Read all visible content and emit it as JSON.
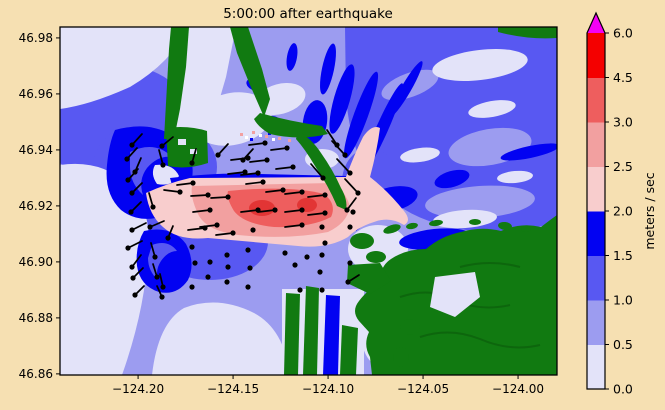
{
  "figure": {
    "title": "5:00:00 after earthquake",
    "background_color": "#F6E0B2"
  },
  "chart_data": {
    "type": "heatmap",
    "title": "5:00:00 after earthquake",
    "xlabel": "",
    "ylabel": "",
    "xlim": [
      -124.2411,
      -123.9795
    ],
    "ylim": [
      46.8596,
      46.9839
    ],
    "x_tick_values": [
      -124.2,
      -124.15,
      -124.1,
      -124.05,
      -124.0
    ],
    "x_tick_labels": [
      "−124.20",
      "−124.15",
      "−124.10",
      "−124.05",
      "−124.00"
    ],
    "y_tick_values": [
      46.98,
      46.96,
      46.94,
      46.92,
      46.9,
      46.88,
      46.86
    ],
    "y_tick_labels": [
      "46.98",
      "46.96",
      "46.94",
      "46.92",
      "46.90",
      "46.88",
      "46.86"
    ],
    "grid": false,
    "legend_position": "none",
    "colorbar": {
      "label": "meters / sec",
      "levels": [
        0.0,
        0.5,
        1.0,
        1.5,
        2.0,
        2.5,
        3.0,
        4.5,
        6.0
      ],
      "tick_labels": [
        "0.0",
        "0.5",
        "1.0",
        "1.5",
        "2.0",
        "2.5",
        "3.0",
        "4.5",
        "6.0"
      ],
      "segment_colors": [
        "#E3E3F9",
        "#9C9CF0",
        "#5858F2",
        "#0202F2",
        "#F8CDCD",
        "#F2A0A0",
        "#EE5E5E",
        "#F40000"
      ],
      "over_color": "#F400F4",
      "spacing": "uniform"
    },
    "map_colors": {
      "water_0_05": "#E3E3F9",
      "water_05_10": "#9C9CF0",
      "water_10_15": "#5858F2",
      "water_15_20": "#0202F2",
      "vel_20_25": "#F8CDCD",
      "vel_25_30": "#F2A0A0",
      "vel_30_45": "#EE5E5E",
      "vel_45_60": "#E23535",
      "land": "#117A11",
      "land_dark": "#0D660D",
      "particle": "#000000"
    },
    "particles_note": "drifter dots with trailing tails, plot-local px [x,y,tailx,taily]",
    "particles": [
      [
        72,
        118,
        82,
        107
      ],
      [
        102,
        119,
        113,
        110
      ],
      [
        67,
        132,
        77,
        121
      ],
      [
        103,
        138,
        99,
        123
      ],
      [
        75,
        145,
        81,
        131
      ],
      [
        68,
        153,
        78,
        142
      ],
      [
        72,
        166,
        82,
        156
      ],
      [
        93,
        180,
        89,
        166
      ],
      [
        71,
        185,
        81,
        175
      ],
      [
        90,
        200,
        104,
        194
      ],
      [
        72,
        203,
        86,
        196
      ],
      [
        68,
        221,
        82,
        214
      ],
      [
        72,
        240,
        81,
        228
      ],
      [
        73,
        251,
        83,
        241
      ],
      [
        75,
        268,
        84,
        259
      ],
      [
        95,
        230,
        91,
        216
      ],
      [
        97,
        250,
        93,
        237
      ],
      [
        103,
        260,
        100,
        247
      ],
      [
        102,
        270,
        97,
        259
      ],
      [
        108,
        211,
        113,
        199
      ],
      [
        120,
        165,
        104,
        163
      ],
      [
        133,
        156,
        117,
        158
      ],
      [
        148,
        168,
        131,
        169
      ],
      [
        168,
        170,
        151,
        171
      ],
      [
        150,
        183,
        133,
        185
      ],
      [
        132,
        136,
        136,
        122
      ],
      [
        158,
        128,
        168,
        117
      ],
      [
        183,
        133,
        193,
        122
      ],
      [
        205,
        116,
        189,
        118
      ],
      [
        227,
        121,
        211,
        123
      ],
      [
        188,
        131,
        171,
        133
      ],
      [
        207,
        133,
        190,
        135
      ],
      [
        233,
        140,
        216,
        142
      ],
      [
        185,
        145,
        168,
        147
      ],
      [
        198,
        146,
        181,
        148
      ],
      [
        203,
        155,
        186,
        157
      ],
      [
        223,
        163,
        206,
        165
      ],
      [
        242,
        165,
        225,
        167
      ],
      [
        265,
        168,
        248,
        170
      ],
      [
        198,
        183,
        181,
        185
      ],
      [
        215,
        183,
        198,
        185
      ],
      [
        242,
        183,
        225,
        185
      ],
      [
        265,
        186,
        248,
        188
      ],
      [
        287,
        183,
        296,
        171
      ],
      [
        145,
        201,
        128,
        203
      ],
      [
        157,
        198,
        140,
        200
      ],
      [
        173,
        206,
        156,
        208
      ],
      [
        242,
        198,
        225,
        200
      ],
      [
        277,
        118,
        267,
        103
      ],
      [
        285,
        128,
        272,
        114
      ],
      [
        290,
        146,
        277,
        132
      ],
      [
        298,
        166,
        285,
        152
      ],
      [
        263,
        151,
        251,
        137
      ],
      [
        132,
        220,
        132,
        220
      ],
      [
        135,
        236,
        135,
        236
      ],
      [
        132,
        260,
        132,
        260
      ],
      [
        150,
        235,
        150,
        235
      ],
      [
        148,
        250,
        148,
        250
      ],
      [
        167,
        228,
        167,
        228
      ],
      [
        168,
        240,
        168,
        240
      ],
      [
        167,
        255,
        167,
        255
      ],
      [
        188,
        223,
        188,
        223
      ],
      [
        190,
        241,
        190,
        241
      ],
      [
        188,
        260,
        188,
        260
      ],
      [
        193,
        203,
        193,
        203
      ],
      [
        225,
        226,
        225,
        226
      ],
      [
        235,
        238,
        235,
        238
      ],
      [
        240,
        263,
        240,
        263
      ],
      [
        247,
        230,
        247,
        230
      ],
      [
        262,
        200,
        262,
        200
      ],
      [
        262,
        228,
        262,
        228
      ],
      [
        260,
        245,
        260,
        245
      ],
      [
        262,
        263,
        262,
        263
      ],
      [
        265,
        216,
        265,
        216
      ],
      [
        290,
        200,
        290,
        200
      ],
      [
        290,
        236,
        290,
        236
      ],
      [
        288,
        255,
        299,
        248
      ],
      [
        293,
        185,
        293,
        185
      ]
    ]
  }
}
